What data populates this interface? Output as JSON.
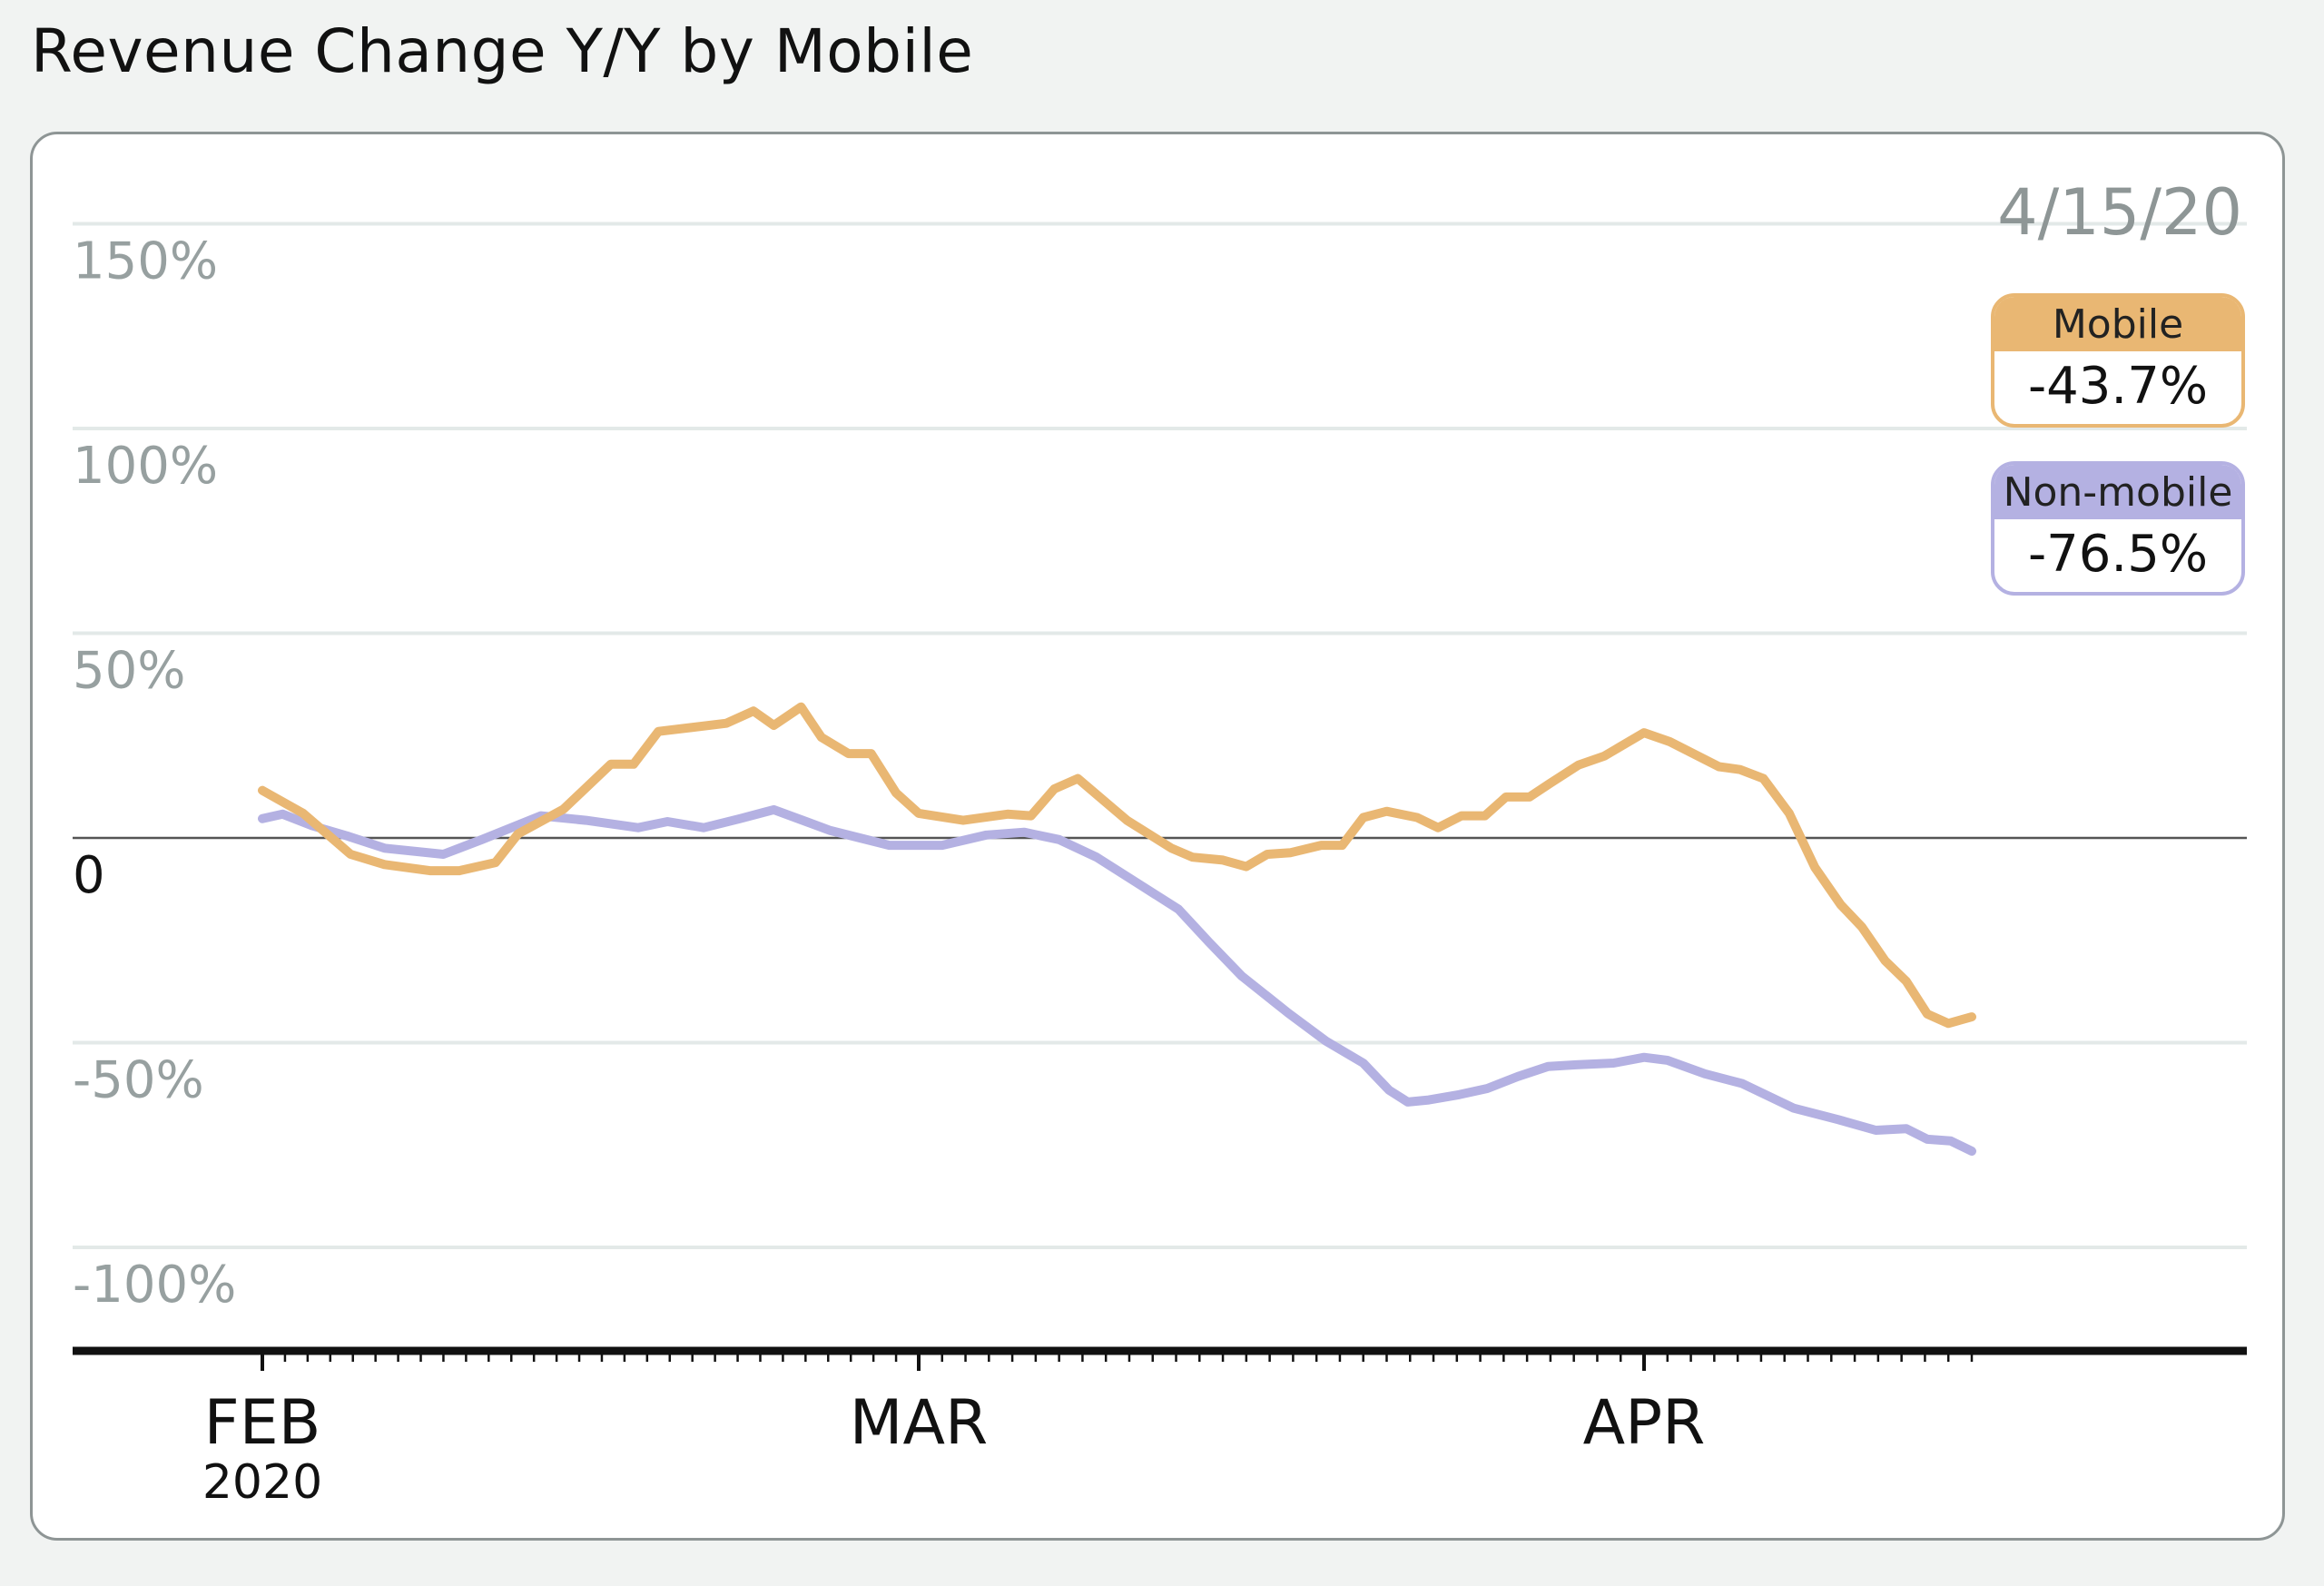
{
  "chart_data": {
    "type": "line",
    "title": "Revenue Change Y/Y by Mobile",
    "xlabel": "",
    "ylabel": "",
    "x_unit": "days since Feb 1, 2020",
    "ylim": [
      -115,
      160
    ],
    "grid": true,
    "y_ticks": [
      {
        "value": 150,
        "label": "150%"
      },
      {
        "value": 100,
        "label": "100%"
      },
      {
        "value": 50,
        "label": "50%"
      },
      {
        "value": 0,
        "label": "0"
      },
      {
        "value": -50,
        "label": "-50%"
      },
      {
        "value": -100,
        "label": "-100%"
      }
    ],
    "x_ticks": [
      {
        "day": 0,
        "label": "FEB",
        "sublabel": "2020"
      },
      {
        "day": 29,
        "label": "MAR",
        "sublabel": ""
      },
      {
        "day": 60,
        "label": "APR",
        "sublabel": ""
      }
    ],
    "last_day": 74,
    "date_label": "4/15/20",
    "series": [
      {
        "name": "Mobile",
        "color": "#e9b773",
        "latest_label": "-43.7%",
        "points": [
          [
            0,
            11.6
          ],
          [
            1.8,
            6
          ],
          [
            3.9,
            -4
          ],
          [
            5.4,
            -6.5
          ],
          [
            7.4,
            -8
          ],
          [
            8.7,
            -8
          ],
          [
            10.3,
            -6
          ],
          [
            11.3,
            1
          ],
          [
            13.3,
            7
          ],
          [
            15.4,
            18
          ],
          [
            16.4,
            18
          ],
          [
            17.5,
            26
          ],
          [
            20.5,
            28
          ],
          [
            21.7,
            31
          ],
          [
            22.6,
            27.5
          ],
          [
            23.8,
            32
          ],
          [
            24.7,
            24.6
          ],
          [
            25.9,
            20.6
          ],
          [
            26.9,
            20.6
          ],
          [
            28,
            11
          ],
          [
            29,
            6
          ],
          [
            30.9,
            4.3
          ],
          [
            32.8,
            5.8
          ],
          [
            33.8,
            5.4
          ],
          [
            34.8,
            12
          ],
          [
            35.8,
            14.5
          ],
          [
            37.9,
            4.3
          ],
          [
            39.8,
            -2.5
          ],
          [
            40.7,
            -4.7
          ],
          [
            42,
            -5.4
          ],
          [
            43,
            -7
          ],
          [
            43.9,
            -4
          ],
          [
            44.9,
            -3.6
          ],
          [
            46.2,
            -1.8
          ],
          [
            47.1,
            -1.8
          ],
          [
            48,
            5
          ],
          [
            49,
            6.5
          ],
          [
            50.3,
            5
          ],
          [
            51.2,
            2.5
          ],
          [
            52.2,
            5.4
          ],
          [
            53.2,
            5.4
          ],
          [
            54.1,
            10
          ],
          [
            55.1,
            10
          ],
          [
            56,
            13.4
          ],
          [
            57.2,
            17.8
          ],
          [
            58.3,
            20
          ],
          [
            60,
            25.7
          ],
          [
            61.1,
            23.5
          ],
          [
            63.2,
            17.4
          ],
          [
            64.1,
            16.7
          ],
          [
            65.1,
            14.5
          ],
          [
            66.2,
            6
          ],
          [
            67.3,
            -7.2
          ],
          [
            68.4,
            -16.3
          ],
          [
            69.3,
            -21.7
          ],
          [
            70.3,
            -30
          ],
          [
            71.2,
            -35
          ],
          [
            72.1,
            -43
          ],
          [
            73,
            -45.3
          ],
          [
            74,
            -43.7
          ]
        ]
      },
      {
        "name": "Non-mobile",
        "color": "#b4b1e2",
        "latest_label": "-76.5%",
        "points": [
          [
            0,
            4.7
          ],
          [
            0.9,
            5.8
          ],
          [
            2.2,
            3
          ],
          [
            3.8,
            0.4
          ],
          [
            5.4,
            -2.5
          ],
          [
            8,
            -4
          ],
          [
            9.7,
            -0.4
          ],
          [
            12.3,
            5.4
          ],
          [
            14.3,
            4.3
          ],
          [
            16.6,
            2.5
          ],
          [
            17.9,
            4
          ],
          [
            19.5,
            2.5
          ],
          [
            21.1,
            4.7
          ],
          [
            22.6,
            6.9
          ],
          [
            25.1,
            1.8
          ],
          [
            27.7,
            -1.8
          ],
          [
            30,
            -1.8
          ],
          [
            31.9,
            0.7
          ],
          [
            33.5,
            1.4
          ],
          [
            35,
            -0.4
          ],
          [
            36.6,
            -4.7
          ],
          [
            38.5,
            -11.6
          ],
          [
            40.1,
            -17.4
          ],
          [
            41.4,
            -25.4
          ],
          [
            42.8,
            -33.7
          ],
          [
            44.8,
            -42.8
          ],
          [
            46.4,
            -49.6
          ],
          [
            48,
            -55
          ],
          [
            49.1,
            -61.6
          ],
          [
            49.9,
            -64.5
          ],
          [
            50.8,
            -64
          ],
          [
            52.1,
            -62.7
          ],
          [
            53.3,
            -61.2
          ],
          [
            54.6,
            -58.3
          ],
          [
            55.9,
            -55.8
          ],
          [
            57.1,
            -55.4
          ],
          [
            58.7,
            -55
          ],
          [
            60,
            -53.6
          ],
          [
            61,
            -54.3
          ],
          [
            62.6,
            -57.6
          ],
          [
            64.2,
            -60
          ],
          [
            66.4,
            -66
          ],
          [
            68.3,
            -68.8
          ],
          [
            69.9,
            -71.4
          ],
          [
            71.2,
            -71
          ],
          [
            72.1,
            -73.6
          ],
          [
            73.1,
            -74
          ],
          [
            74,
            -76.5
          ]
        ]
      }
    ]
  }
}
